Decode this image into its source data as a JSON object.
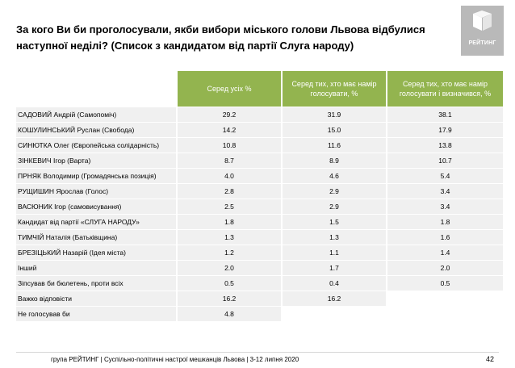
{
  "title": "За кого Ви би проголосували, якби вибори міського голови Львова відбулися наступної неділі? (Список з кандидатом від партії Слуга народу)",
  "logo": {
    "text": "РЕЙТИНГ",
    "icon": "rating-logo-icon"
  },
  "table": {
    "headers": [
      "Серед усіх %",
      "Серед тих, хто має намір голосувати, %",
      "Серед тих, хто має намір голосувати і визначився, %"
    ],
    "rows": [
      {
        "label": "САДОВИЙ Андрій (Самопоміч)",
        "v1": "29.2",
        "v2": "31.9",
        "v3": "38.1"
      },
      {
        "label": "КОШУЛИНСЬКИЙ Руслан (Свобода)",
        "v1": "14.2",
        "v2": "15.0",
        "v3": "17.9"
      },
      {
        "label": "СИНЮТКА Олег (Європейська солідарність)",
        "v1": "10.8",
        "v2": "11.6",
        "v3": "13.8"
      },
      {
        "label": "ЗІНКЕВИЧ Ігор (Варта)",
        "v1": "8.7",
        "v2": "8.9",
        "v3": "10.7"
      },
      {
        "label": "ПРНЯК Володимир (Громадянська позиція)",
        "v1": "4.0",
        "v2": "4.6",
        "v3": "5.4"
      },
      {
        "label": "РУЩИШИН Ярослав (Голос)",
        "v1": "2.8",
        "v2": "2.9",
        "v3": "3.4"
      },
      {
        "label": "ВАСЮНИК Ігор (самовисування)",
        "v1": "2.5",
        "v2": "2.9",
        "v3": "3.4"
      },
      {
        "label": "Кандидат від партії «СЛУГА НАРОДУ»",
        "v1": "1.8",
        "v2": "1.5",
        "v3": "1.8"
      },
      {
        "label": "ТИМЧІЙ Наталія (Батьківщина)",
        "v1": "1.3",
        "v2": "1.3",
        "v3": "1.6"
      },
      {
        "label": "БРЕЗІЦЬКИЙ Назарій (Ідея міста)",
        "v1": "1.2",
        "v2": "1.1",
        "v3": "1.4"
      },
      {
        "label": "Інший",
        "v1": "2.0",
        "v2": "1.7",
        "v3": "2.0"
      },
      {
        "label": "Зіпсував би бюлетень, проти всіх",
        "v1": "0.5",
        "v2": "0.4",
        "v3": "0.5"
      },
      {
        "label": "Важко відповісти",
        "v1": "16.2",
        "v2": "16.2",
        "v3": null
      },
      {
        "label": "Не голосував би",
        "v1": "4.8",
        "v2": null,
        "v3": null
      }
    ]
  },
  "footer": {
    "text": "група РЕЙТИНГ | Суспільно-політичні настрої мешканців Львова | 3-12 липня 2020",
    "page": "42"
  },
  "colors": {
    "header_green": "#93b44f",
    "row_gray": "#f0f0f0",
    "logo_gray": "#b9b9b9"
  }
}
